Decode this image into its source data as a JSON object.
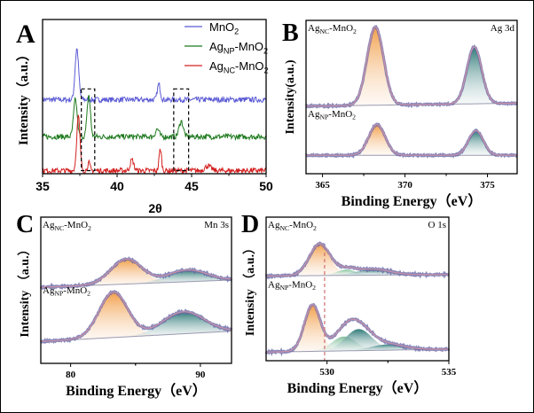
{
  "colors": {
    "mno2": "#5b5bd6",
    "agnp": "#1f7a1f",
    "agnc": "#d42020",
    "fit": "#8a7fae",
    "envelope": "#c990a8",
    "orange": "#f2a04a",
    "teal": "#2e7b78",
    "green": "#7fbf9a",
    "background": "#9a9ab0"
  },
  "chart_data": [
    {
      "panel": "A",
      "type": "line",
      "letter": "A",
      "xlabel": "2θ",
      "ylabel": "Intensity（a.u.）",
      "xlim": [
        35,
        50
      ],
      "ylim": [
        0,
        1
      ],
      "xticks": [
        "35",
        "40",
        "45",
        "50"
      ],
      "legend_placement": "top-right",
      "series": [
        {
          "name": "MnO2",
          "label": {
            "a": "MnO",
            "b": "2",
            "c": "",
            "d": ""
          },
          "color": "#5b5bd6",
          "baseline": 0.48,
          "peaks": [
            [
              37.3,
              0.33,
              0.12
            ],
            [
              42.8,
              0.1,
              0.1
            ]
          ]
        },
        {
          "name": "AgNP-MnO2",
          "label": {
            "a": "Ag",
            "b": "NP",
            "c": "-MnO",
            "d": "2"
          },
          "color": "#1f7a1f",
          "baseline": 0.24,
          "peaks": [
            [
              37.2,
              0.24,
              0.12
            ],
            [
              38.1,
              0.27,
              0.11
            ],
            [
              42.7,
              0.05,
              0.12
            ],
            [
              44.3,
              0.1,
              0.14
            ]
          ]
        },
        {
          "name": "AgNC-MnO2",
          "label": {
            "a": "Ag",
            "b": "NC",
            "c": "-MnO",
            "d": "2"
          },
          "color": "#d42020",
          "baseline": 0.02,
          "peaks": [
            [
              37.4,
              0.35,
              0.11
            ],
            [
              38.1,
              0.05,
              0.08
            ],
            [
              41.0,
              0.07,
              0.12
            ],
            [
              42.9,
              0.14,
              0.08
            ],
            [
              46.1,
              0.03,
              0.2
            ]
          ]
        }
      ],
      "highlight_regions": [
        [
          37.6,
          38.5
        ],
        [
          43.8,
          44.8
        ]
      ]
    },
    {
      "panel": "B",
      "type": "area",
      "letter": "B",
      "xlabel": "Binding Energy（eV）",
      "ylabel": "Intensity(a.u.)",
      "corner": "Ag 3d",
      "xlim": [
        364,
        376.8
      ],
      "ylim": [
        0,
        1
      ],
      "xticks": [
        "365",
        "370",
        "375"
      ],
      "spectra": [
        {
          "name": "AgNC-MnO2",
          "label": {
            "a": "Ag",
            "b": "NC",
            "c": "-MnO",
            "d": "2"
          },
          "baseline": [
            0.44,
            0.46
          ],
          "components": [
            [
              368.2,
              0.51,
              0.5,
              "orange"
            ],
            [
              374.2,
              0.37,
              0.45,
              "teal"
            ]
          ]
        },
        {
          "name": "AgNP-MnO2",
          "label": {
            "a": "Ag",
            "b": "NP",
            "c": "-MnO",
            "d": "2"
          },
          "baseline": [
            0.12,
            0.12
          ],
          "components": [
            [
              368.3,
              0.2,
              0.5,
              "orange"
            ],
            [
              374.3,
              0.16,
              0.45,
              "teal"
            ]
          ]
        }
      ]
    },
    {
      "panel": "C",
      "type": "area",
      "letter": "C",
      "xlabel": "Binding Energy（eV）",
      "ylabel": "Intensity （a.u.）",
      "corner": "Mn 3s",
      "xlim": [
        77.7,
        92.4
      ],
      "ylim": [
        0,
        1
      ],
      "xticks": [
        "80",
        "90"
      ],
      "spectra": [
        {
          "name": "AgNC-MnO2",
          "label": {
            "a": "Ag",
            "b": "NC",
            "c": "-MnO",
            "d": "2"
          },
          "baseline": [
            0.52,
            0.57
          ],
          "components": [
            [
              84.3,
              0.17,
              1.2,
              "orange"
            ],
            [
              89.0,
              0.08,
              1.5,
              "teal"
            ]
          ]
        },
        {
          "name": "AgNP-MnO2",
          "label": {
            "a": "Ag",
            "b": "NP",
            "c": "-MnO",
            "d": "2"
          },
          "baseline": [
            0.15,
            0.22
          ],
          "components": [
            [
              83.3,
              0.31,
              1.1,
              "orange"
            ],
            [
              88.7,
              0.15,
              1.6,
              "teal"
            ]
          ]
        }
      ]
    },
    {
      "panel": "D",
      "type": "area",
      "letter": "D",
      "xlabel": "Binding Energy（eV）",
      "ylabel": "Intensity （a.u.）",
      "corner": "O 1s",
      "xlim": [
        527.5,
        535
      ],
      "ylim": [
        0,
        1
      ],
      "xticks": [
        "530",
        "535"
      ],
      "reference_line": 529.9,
      "spectra": [
        {
          "name": "AgNC-MnO2",
          "label": {
            "a": "Ag",
            "b": "NC",
            "c": "-MnO",
            "d": "2"
          },
          "baseline": [
            0.59,
            0.6
          ],
          "components": [
            [
              529.7,
              0.22,
              0.42,
              "orange"
            ],
            [
              530.8,
              0.04,
              0.4,
              "green"
            ],
            [
              531.9,
              0.04,
              0.7,
              "teal"
            ]
          ]
        },
        {
          "name": "AgNP-MnO2",
          "label": {
            "a": "Ag",
            "b": "NP",
            "c": "-MnO",
            "d": "2"
          },
          "baseline": [
            0.06,
            0.08
          ],
          "components": [
            [
              529.4,
              0.32,
              0.33,
              "orange"
            ],
            [
              530.7,
              0.1,
              0.5,
              "green"
            ],
            [
              531.3,
              0.15,
              0.55,
              "teal"
            ],
            [
              532.5,
              0.04,
              0.7,
              "teal"
            ]
          ]
        }
      ]
    }
  ]
}
